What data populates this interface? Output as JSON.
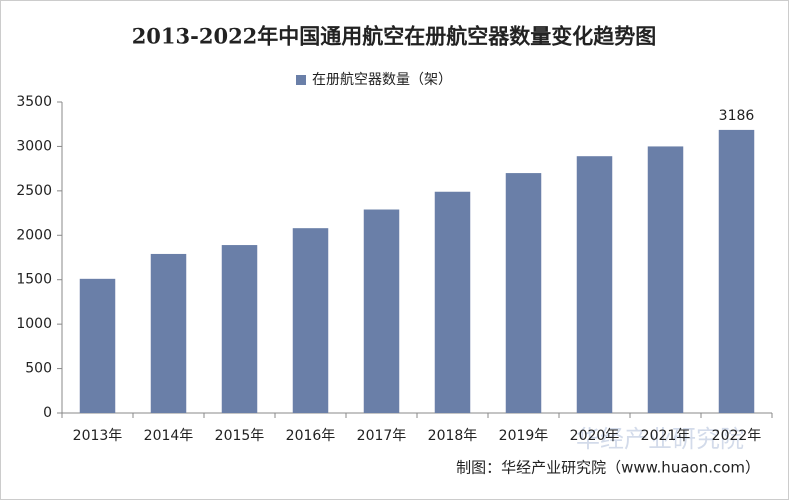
{
  "chart_data": {
    "type": "bar",
    "title": "2013-2022年中国通用航空在册航空器数量变化趋势图",
    "legend": "在册航空器数量（架）",
    "categories": [
      "2013年",
      "2014年",
      "2015年",
      "2016年",
      "2017年",
      "2018年",
      "2019年",
      "2020年",
      "2021年",
      "2022年"
    ],
    "values": [
      1510,
      1790,
      1890,
      2080,
      2290,
      2490,
      2700,
      2890,
      3000,
      3186
    ],
    "value_labels": [
      null,
      null,
      null,
      null,
      null,
      null,
      null,
      null,
      null,
      "3186"
    ],
    "color": "#6a7fa8",
    "ylim": [
      0,
      3500
    ],
    "yticks": [
      0,
      500,
      1000,
      1500,
      2000,
      2500,
      3000,
      3500
    ],
    "grid": false,
    "source": "制图：华经产业研究院（www.huaon.com）",
    "watermark": "华经产业研究院"
  }
}
